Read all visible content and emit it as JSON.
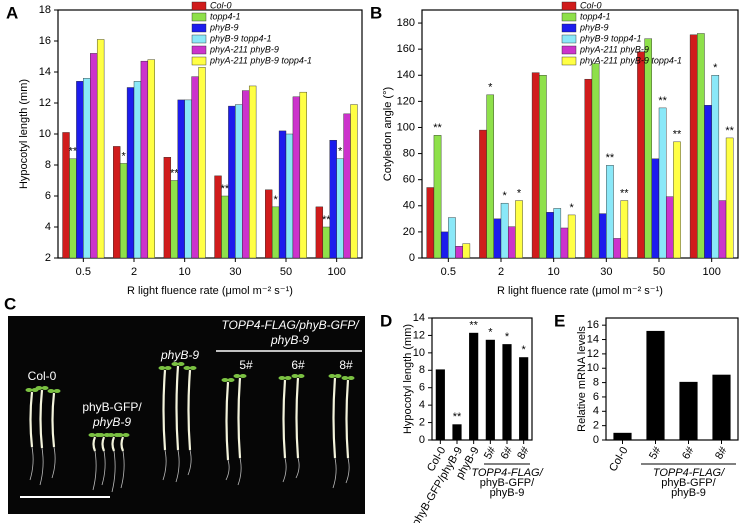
{
  "chart_data": [
    {
      "panel": "A",
      "type": "bar",
      "ylabel": "Hypocotyl length (mm)",
      "xlabel": "R light fluence rate (μmol m⁻² s⁻¹)",
      "categories": [
        "0.5",
        "2",
        "10",
        "30",
        "50",
        "100"
      ],
      "ylim": [
        2,
        18
      ],
      "yticks": [
        2,
        4,
        6,
        8,
        10,
        12,
        14,
        16,
        18
      ],
      "legend": "top",
      "series": [
        {
          "name": "Col-0",
          "color": "#d01c1c",
          "values": [
            10.1,
            9.2,
            8.5,
            7.3,
            6.4,
            5.3
          ]
        },
        {
          "name": "topp4-1",
          "color": "#8ee04a",
          "values": [
            8.4,
            8.1,
            7.0,
            6.0,
            5.3,
            4.0
          ],
          "annotations": [
            "**",
            "*",
            "**",
            "**",
            "*",
            "**"
          ]
        },
        {
          "name": "phyB-9",
          "color": "#1c1ced",
          "values": [
            13.4,
            13.0,
            12.2,
            11.8,
            10.2,
            9.6
          ]
        },
        {
          "name": "phyB-9 topp4-1",
          "color": "#8ae8f8",
          "values": [
            13.6,
            13.4,
            12.2,
            11.9,
            10.0,
            8.4
          ],
          "annotations": [
            null,
            null,
            null,
            null,
            null,
            "*"
          ]
        },
        {
          "name": "phyA-211 phyB-9",
          "color": "#cc33cc",
          "values": [
            15.2,
            14.7,
            13.7,
            12.8,
            12.4,
            11.3
          ]
        },
        {
          "name": "phyA-211 phyB-9 topp4-1",
          "color": "#ffff44",
          "values": [
            16.1,
            14.8,
            14.3,
            13.1,
            12.7,
            11.9
          ]
        }
      ]
    },
    {
      "panel": "B",
      "type": "bar",
      "ylabel": "Cotyledon angle (°)",
      "xlabel": "R light fluence rate (μmol m⁻² s⁻¹)",
      "categories": [
        "0.5",
        "2",
        "10",
        "30",
        "50",
        "100"
      ],
      "ylim": [
        0,
        190
      ],
      "yticks": [
        0,
        20,
        40,
        60,
        80,
        100,
        120,
        140,
        160,
        180
      ],
      "legend": "top",
      "series": [
        {
          "name": "Col-0",
          "color": "#d01c1c",
          "values": [
            54,
            98,
            142,
            137,
            158,
            171
          ]
        },
        {
          "name": "topp4-1",
          "color": "#8ee04a",
          "values": [
            94,
            125,
            140,
            149,
            168,
            172
          ],
          "annotations": [
            "**",
            "*",
            null,
            null,
            null,
            null
          ]
        },
        {
          "name": "phyB-9",
          "color": "#1c1ced",
          "values": [
            20,
            30,
            35,
            34,
            76,
            117
          ]
        },
        {
          "name": "phyB-9 topp4-1",
          "color": "#8ae8f8",
          "values": [
            31,
            42,
            38,
            71,
            115,
            140
          ],
          "annotations": [
            null,
            "*",
            null,
            "**",
            "**",
            "*"
          ]
        },
        {
          "name": "phyA-211 phyB-9",
          "color": "#cc33cc",
          "values": [
            9,
            24,
            23,
            15,
            47,
            44
          ]
        },
        {
          "name": "phyA-211 phyB-9 topp4-1",
          "color": "#ffff44",
          "values": [
            11,
            44,
            33,
            44,
            89,
            92
          ],
          "annotations": [
            null,
            "*",
            "*",
            "**",
            "**",
            "**"
          ]
        }
      ]
    },
    {
      "panel": "D",
      "type": "bar",
      "ylabel": "Hypocotyl length (mm)",
      "color": "#000000",
      "categories": [
        "Col-0",
        "phyB-GFP/phyB-9",
        "phyB-9",
        "5#",
        "6#",
        "8#"
      ],
      "values": [
        8.1,
        1.8,
        12.3,
        11.5,
        11.0,
        9.5
      ],
      "annotations": [
        null,
        "**",
        "**",
        "*",
        "*",
        "*"
      ],
      "group_label": "TOPP4-FLAG/phyB-GFP/phyB-9",
      "ylim": [
        0,
        14
      ],
      "yticks": [
        0,
        2,
        4,
        6,
        8,
        10,
        12,
        14
      ]
    },
    {
      "panel": "E",
      "type": "bar",
      "ylabel": "Relative mRNA levels",
      "color": "#000000",
      "categories": [
        "Col-0",
        "5#",
        "6#",
        "8#"
      ],
      "values": [
        1.0,
        15.2,
        8.1,
        9.1
      ],
      "group_label": "TOPP4-FLAG/phyB-GFP/phyB-9",
      "ylim": [
        0,
        17
      ],
      "yticks": [
        0,
        2,
        4,
        6,
        8,
        10,
        12,
        14,
        16
      ]
    }
  ],
  "photo": {
    "panel": "C",
    "labels": [
      "Col-0",
      "phyB-GFP/",
      "phyB-9",
      "phyB-9",
      "TOPP4-FLAG/phyB-GFP/",
      "phyB-9",
      "5#",
      "6#",
      "8#"
    ]
  }
}
